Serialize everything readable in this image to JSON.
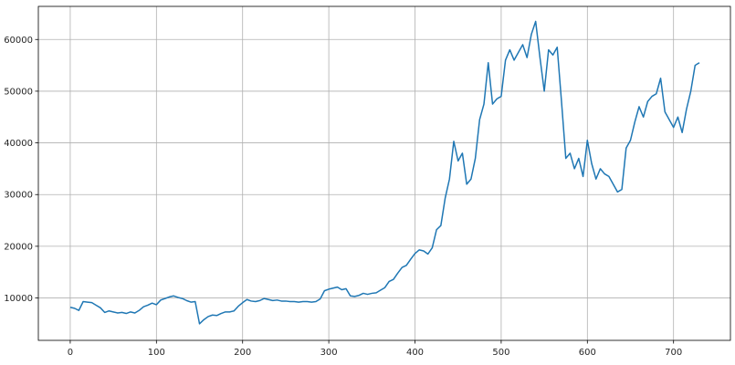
{
  "chart_data": {
    "type": "line",
    "title": "",
    "xlabel": "",
    "ylabel": "",
    "xlim": [
      -37,
      766
    ],
    "ylim": [
      1800,
      66400
    ],
    "grid": true,
    "legend": "none",
    "line_color": "#1f77b4",
    "x_ticks": [
      0,
      100,
      200,
      300,
      400,
      500,
      600,
      700
    ],
    "y_ticks": [
      10000,
      20000,
      30000,
      40000,
      50000,
      60000
    ],
    "series": [
      {
        "x": [
          0,
          5,
          10,
          15,
          20,
          25,
          30,
          35,
          40,
          45,
          50,
          55,
          60,
          65,
          70,
          75,
          80,
          85,
          90,
          95,
          100,
          105,
          110,
          115,
          120,
          125,
          130,
          135,
          140,
          145,
          150,
          155,
          160,
          165,
          170,
          175,
          180,
          185,
          190,
          195,
          200,
          205,
          210,
          215,
          220,
          225,
          230,
          235,
          240,
          245,
          250,
          255,
          260,
          265,
          270,
          275,
          280,
          285,
          290,
          295,
          300,
          305,
          310,
          315,
          320,
          325,
          330,
          335,
          340,
          345,
          350,
          355,
          360,
          365,
          370,
          375,
          380,
          385,
          390,
          395,
          400,
          405,
          410,
          415,
          420,
          425,
          430,
          435,
          440,
          445,
          450,
          455,
          460,
          465,
          470,
          475,
          480,
          485,
          490,
          495,
          500,
          505,
          510,
          515,
          520,
          525,
          530,
          535,
          540,
          545,
          550,
          555,
          560,
          565,
          570,
          575,
          580,
          585,
          590,
          595,
          600,
          605,
          610,
          615,
          620,
          625,
          630,
          635,
          640,
          645,
          650,
          655,
          660,
          665,
          670,
          675,
          680,
          685,
          690,
          695,
          700,
          705,
          710,
          715,
          720,
          725,
          730
        ],
        "y": [
          8200,
          8000,
          7600,
          9300,
          9200,
          9100,
          8600,
          8100,
          7200,
          7500,
          7300,
          7100,
          7200,
          7000,
          7300,
          7100,
          7600,
          8300,
          8600,
          9000,
          8700,
          9600,
          9900,
          10200,
          10400,
          10100,
          9900,
          9500,
          9200,
          9300,
          5000,
          5800,
          6400,
          6700,
          6600,
          7000,
          7300,
          7300,
          7500,
          8400,
          9100,
          9700,
          9400,
          9300,
          9500,
          9900,
          9700,
          9500,
          9600,
          9400,
          9400,
          9300,
          9300,
          9200,
          9300,
          9300,
          9200,
          9300,
          9800,
          11400,
          11700,
          11900,
          12100,
          11600,
          11800,
          10400,
          10300,
          10500,
          10900,
          10700,
          10900,
          11000,
          11500,
          12000,
          13200,
          13600,
          14800,
          15900,
          16300,
          17500,
          18600,
          19300,
          19100,
          18500,
          19700,
          23200,
          24000,
          29300,
          33000,
          40300,
          36500,
          38000,
          32000,
          33000,
          37000,
          44500,
          47500,
          55500,
          47500,
          48500,
          49000,
          56000,
          58000,
          56000,
          57500,
          59000,
          56500,
          61000,
          63500,
          56500,
          50000,
          58000,
          57000,
          58500,
          48000,
          37000,
          38000,
          35000,
          37000,
          33500,
          40500,
          36000,
          33000,
          35000,
          34000,
          33500,
          32000,
          30500,
          31000,
          39000,
          40500,
          44000,
          47000,
          45000,
          48000,
          49000,
          49500,
          52500,
          46000,
          44500,
          43000,
          45000,
          42000,
          46500,
          50000,
          55000,
          55500
        ]
      }
    ]
  }
}
